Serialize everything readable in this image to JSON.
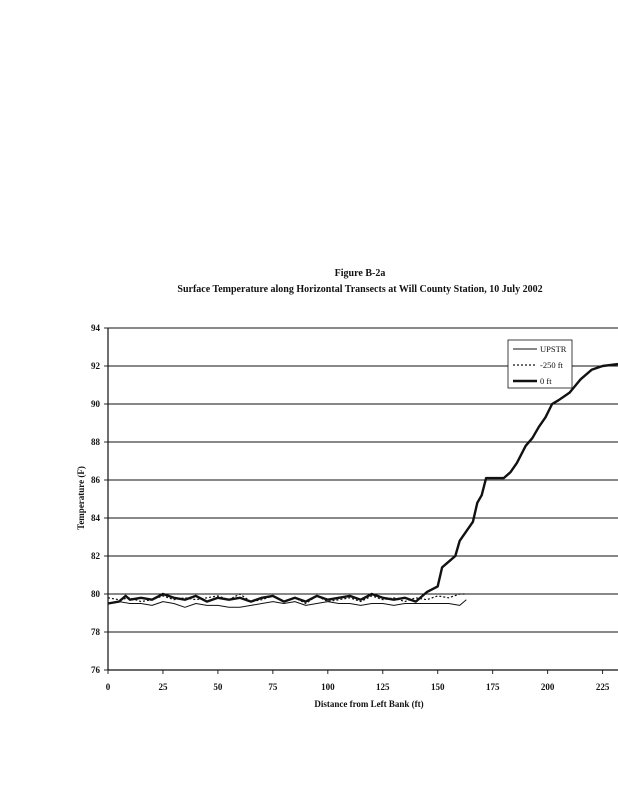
{
  "title": "Figure B-2a",
  "subtitle": "Surface Temperature along Horizontal Transects at Will County Station, 10 July 2002",
  "chart_data": {
    "type": "line",
    "xlabel": "Distance from Left Bank (ft)",
    "ylabel": "Temperature (F)",
    "xlim": [
      0,
      232
    ],
    "ylim": [
      76,
      94
    ],
    "x_ticks": [
      0,
      25,
      50,
      75,
      100,
      125,
      150,
      175,
      200,
      225
    ],
    "y_ticks": [
      76,
      78,
      80,
      82,
      84,
      86,
      88,
      90,
      92,
      94
    ],
    "grid": "horizontal",
    "legend_position": "top-right",
    "series": [
      {
        "name": "UPSTR",
        "style": "thin",
        "x": [
          0,
          5,
          10,
          15,
          20,
          25,
          30,
          35,
          40,
          45,
          50,
          55,
          60,
          65,
          70,
          75,
          80,
          85,
          90,
          95,
          100,
          105,
          110,
          115,
          120,
          125,
          130,
          135,
          140,
          145,
          150,
          155,
          160,
          163
        ],
        "y": [
          79.5,
          79.6,
          79.5,
          79.5,
          79.4,
          79.6,
          79.5,
          79.3,
          79.5,
          79.4,
          79.4,
          79.3,
          79.3,
          79.4,
          79.5,
          79.6,
          79.5,
          79.6,
          79.4,
          79.5,
          79.6,
          79.5,
          79.5,
          79.4,
          79.5,
          79.5,
          79.4,
          79.5,
          79.5,
          79.5,
          79.5,
          79.5,
          79.4,
          79.7
        ]
      },
      {
        "name": "-250 ft",
        "style": "dotted",
        "x": [
          0,
          5,
          10,
          15,
          20,
          25,
          30,
          35,
          40,
          45,
          50,
          55,
          60,
          65,
          70,
          75,
          80,
          85,
          90,
          95,
          100,
          105,
          110,
          115,
          120,
          125,
          130,
          135,
          140,
          145,
          150,
          155,
          160,
          163
        ],
        "y": [
          79.8,
          79.7,
          79.8,
          79.6,
          79.7,
          79.9,
          79.7,
          79.8,
          79.7,
          79.8,
          79.9,
          79.7,
          80.0,
          79.6,
          79.7,
          79.9,
          79.6,
          79.8,
          79.5,
          79.9,
          79.6,
          79.7,
          79.8,
          79.6,
          79.9,
          79.7,
          79.8,
          79.6,
          79.8,
          79.7,
          79.9,
          79.8,
          80.0,
          80.0
        ]
      },
      {
        "name": "0 ft",
        "style": "thick",
        "x": [
          0,
          5,
          8,
          10,
          15,
          20,
          25,
          30,
          35,
          40,
          45,
          50,
          55,
          60,
          65,
          70,
          75,
          80,
          85,
          90,
          95,
          100,
          105,
          110,
          115,
          120,
          125,
          130,
          135,
          140,
          145,
          150,
          152,
          155,
          158,
          160,
          163,
          166,
          168,
          170,
          172,
          175,
          180,
          183,
          186,
          190,
          193,
          196,
          199,
          202,
          205,
          210,
          215,
          220,
          225,
          232
        ],
        "y": [
          79.5,
          79.6,
          79.9,
          79.7,
          79.8,
          79.7,
          80.0,
          79.8,
          79.7,
          79.9,
          79.6,
          79.8,
          79.7,
          79.8,
          79.6,
          79.8,
          79.9,
          79.6,
          79.8,
          79.6,
          79.9,
          79.7,
          79.8,
          79.9,
          79.7,
          80.0,
          79.8,
          79.7,
          79.8,
          79.6,
          80.1,
          80.4,
          81.4,
          81.7,
          82.0,
          82.8,
          83.3,
          83.8,
          84.8,
          85.2,
          86.1,
          86.1,
          86.1,
          86.4,
          86.9,
          87.8,
          88.2,
          88.8,
          89.3,
          90.0,
          90.2,
          90.6,
          91.3,
          91.8,
          92.0,
          92.1
        ]
      }
    ]
  }
}
